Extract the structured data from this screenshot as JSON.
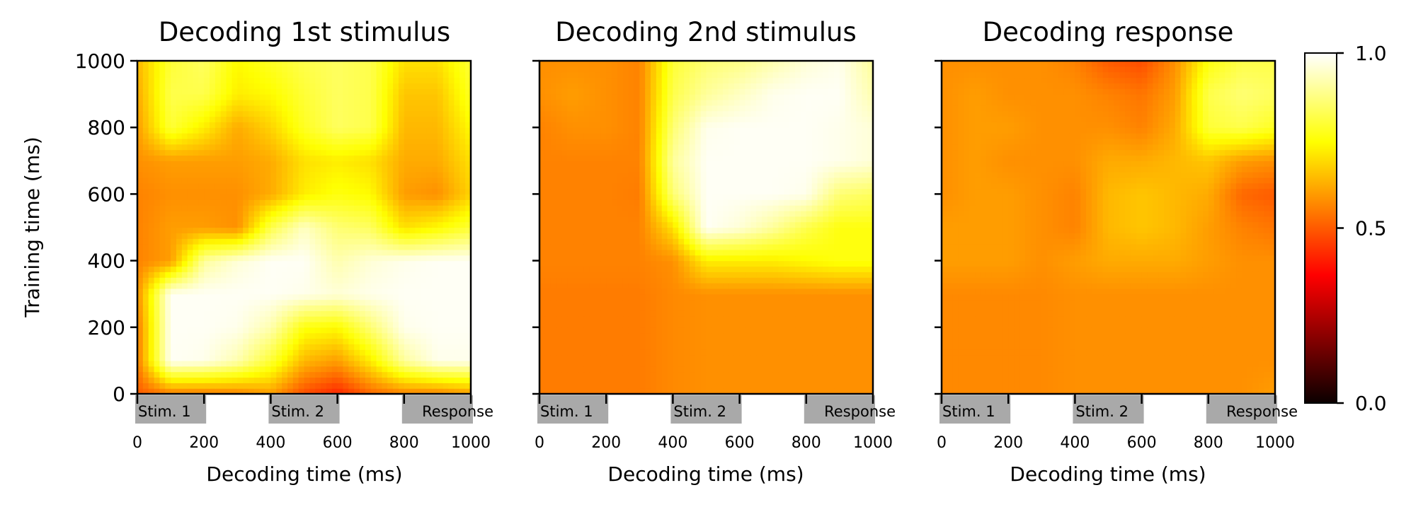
{
  "chart_data": [
    {
      "type": "heatmap",
      "title": "Decoding 1st stimulus",
      "xlabel": "Decoding time (ms)",
      "ylabel": "Training time (ms)",
      "xlim": [
        0,
        1000
      ],
      "ylim": [
        0,
        1000
      ],
      "x_ticks": [
        "0",
        "200",
        "400",
        "600",
        "800",
        "1000"
      ],
      "y_ticks": [
        "0",
        "200",
        "400",
        "600",
        "800",
        "1000"
      ],
      "epochs": [
        {
          "label": "Stim. 1",
          "start": 0,
          "end": 200
        },
        {
          "label": "Stim. 2",
          "start": 400,
          "end": 600
        },
        {
          "label": "Response",
          "start": 800,
          "end": 1000
        }
      ],
      "x": [
        0,
        100,
        200,
        300,
        400,
        500,
        600,
        700,
        800,
        900,
        1000
      ],
      "y": [
        0,
        100,
        200,
        300,
        400,
        500,
        600,
        700,
        800,
        900,
        1000
      ],
      "values": [
        [
          0.5,
          0.55,
          0.55,
          0.56,
          0.6,
          0.48,
          0.42,
          0.52,
          0.56,
          0.56,
          0.6
        ],
        [
          0.55,
          0.99,
          0.98,
          0.92,
          0.8,
          0.64,
          0.6,
          0.72,
          0.9,
          0.98,
          0.98
        ],
        [
          0.55,
          0.99,
          0.99,
          0.98,
          0.92,
          0.76,
          0.74,
          0.86,
          0.98,
          0.99,
          0.99
        ],
        [
          0.58,
          0.99,
          0.99,
          0.99,
          0.99,
          0.98,
          0.96,
          0.98,
          0.99,
          0.99,
          0.99
        ],
        [
          0.56,
          0.6,
          0.9,
          0.96,
          0.99,
          0.99,
          0.92,
          0.96,
          0.98,
          0.99,
          0.99
        ],
        [
          0.56,
          0.6,
          0.6,
          0.58,
          0.82,
          0.94,
          0.86,
          0.84,
          0.7,
          0.74,
          0.8
        ],
        [
          0.56,
          0.58,
          0.58,
          0.58,
          0.62,
          0.72,
          0.76,
          0.74,
          0.6,
          0.58,
          0.68
        ],
        [
          0.58,
          0.6,
          0.6,
          0.6,
          0.62,
          0.7,
          0.72,
          0.7,
          0.62,
          0.62,
          0.7
        ],
        [
          0.6,
          0.8,
          0.72,
          0.62,
          0.68,
          0.78,
          0.84,
          0.82,
          0.64,
          0.64,
          0.74
        ],
        [
          0.62,
          0.82,
          0.82,
          0.72,
          0.74,
          0.8,
          0.84,
          0.82,
          0.66,
          0.66,
          0.78
        ],
        [
          0.64,
          0.8,
          0.84,
          0.74,
          0.78,
          0.82,
          0.84,
          0.82,
          0.7,
          0.7,
          0.8
        ]
      ]
    },
    {
      "type": "heatmap",
      "title": "Decoding 2nd stimulus",
      "xlabel": "Decoding time (ms)",
      "xlim": [
        0,
        1000
      ],
      "ylim": [
        0,
        1000
      ],
      "x_ticks": [
        "0",
        "200",
        "400",
        "600",
        "800",
        "1000"
      ],
      "epochs": [
        {
          "label": "Stim. 1",
          "start": 0,
          "end": 200
        },
        {
          "label": "Stim. 2",
          "start": 400,
          "end": 600
        },
        {
          "label": "Response",
          "start": 800,
          "end": 1000
        }
      ],
      "x": [
        0,
        100,
        200,
        300,
        400,
        500,
        600,
        700,
        800,
        900,
        1000
      ],
      "y": [
        0,
        100,
        200,
        300,
        400,
        500,
        600,
        700,
        800,
        900,
        1000
      ],
      "values": [
        [
          0.55,
          0.55,
          0.55,
          0.55,
          0.57,
          0.58,
          0.58,
          0.58,
          0.58,
          0.58,
          0.58
        ],
        [
          0.55,
          0.55,
          0.55,
          0.55,
          0.57,
          0.58,
          0.58,
          0.58,
          0.58,
          0.58,
          0.58
        ],
        [
          0.55,
          0.55,
          0.55,
          0.55,
          0.57,
          0.58,
          0.58,
          0.58,
          0.58,
          0.58,
          0.58
        ],
        [
          0.55,
          0.55,
          0.55,
          0.55,
          0.57,
          0.58,
          0.58,
          0.58,
          0.58,
          0.58,
          0.58
        ],
        [
          0.56,
          0.56,
          0.56,
          0.56,
          0.58,
          0.72,
          0.72,
          0.72,
          0.74,
          0.76,
          0.76
        ],
        [
          0.56,
          0.56,
          0.56,
          0.56,
          0.7,
          0.99,
          0.96,
          0.9,
          0.82,
          0.76,
          0.76
        ],
        [
          0.56,
          0.56,
          0.56,
          0.55,
          0.86,
          0.99,
          0.99,
          0.99,
          0.98,
          0.86,
          0.84
        ],
        [
          0.56,
          0.56,
          0.56,
          0.56,
          0.9,
          0.99,
          0.99,
          0.99,
          0.99,
          0.98,
          0.96
        ],
        [
          0.56,
          0.58,
          0.58,
          0.56,
          0.86,
          0.98,
          0.99,
          0.99,
          0.99,
          0.98,
          0.96
        ],
        [
          0.58,
          0.6,
          0.58,
          0.56,
          0.82,
          0.9,
          0.94,
          0.98,
          0.99,
          0.99,
          0.92
        ],
        [
          0.58,
          0.58,
          0.58,
          0.56,
          0.8,
          0.86,
          0.88,
          0.92,
          0.96,
          0.98,
          0.9
        ]
      ]
    },
    {
      "type": "heatmap",
      "title": "Decoding response",
      "xlabel": "Decoding time (ms)",
      "xlim": [
        0,
        1000
      ],
      "ylim": [
        0,
        1000
      ],
      "x_ticks": [
        "0",
        "200",
        "400",
        "600",
        "800",
        "1000"
      ],
      "epochs": [
        {
          "label": "Stim. 1",
          "start": 0,
          "end": 200
        },
        {
          "label": "Stim. 2",
          "start": 400,
          "end": 600
        },
        {
          "label": "Response",
          "start": 800,
          "end": 1000
        }
      ],
      "x": [
        0,
        100,
        200,
        300,
        400,
        500,
        600,
        700,
        800,
        900,
        1000
      ],
      "y": [
        0,
        100,
        200,
        300,
        400,
        500,
        600,
        700,
        800,
        900,
        1000
      ],
      "values": [
        [
          0.57,
          0.57,
          0.57,
          0.57,
          0.58,
          0.58,
          0.58,
          0.58,
          0.58,
          0.58,
          0.6
        ],
        [
          0.57,
          0.57,
          0.57,
          0.57,
          0.58,
          0.58,
          0.58,
          0.58,
          0.58,
          0.58,
          0.58
        ],
        [
          0.57,
          0.57,
          0.57,
          0.57,
          0.58,
          0.58,
          0.58,
          0.58,
          0.58,
          0.58,
          0.58
        ],
        [
          0.57,
          0.57,
          0.57,
          0.57,
          0.58,
          0.58,
          0.58,
          0.58,
          0.58,
          0.58,
          0.58
        ],
        [
          0.6,
          0.6,
          0.6,
          0.58,
          0.6,
          0.62,
          0.62,
          0.62,
          0.6,
          0.58,
          0.58
        ],
        [
          0.6,
          0.6,
          0.6,
          0.58,
          0.56,
          0.64,
          0.66,
          0.64,
          0.6,
          0.56,
          0.54
        ],
        [
          0.58,
          0.6,
          0.6,
          0.58,
          0.56,
          0.64,
          0.66,
          0.64,
          0.62,
          0.52,
          0.5
        ],
        [
          0.58,
          0.6,
          0.58,
          0.58,
          0.58,
          0.62,
          0.62,
          0.64,
          0.66,
          0.6,
          0.58
        ],
        [
          0.58,
          0.6,
          0.6,
          0.58,
          0.58,
          0.58,
          0.56,
          0.62,
          0.8,
          0.82,
          0.78
        ],
        [
          0.58,
          0.6,
          0.58,
          0.58,
          0.58,
          0.56,
          0.54,
          0.6,
          0.82,
          0.86,
          0.84
        ],
        [
          0.58,
          0.58,
          0.58,
          0.58,
          0.56,
          0.5,
          0.48,
          0.58,
          0.76,
          0.82,
          0.82
        ]
      ]
    }
  ],
  "colorbar": {
    "colormap": "hot",
    "min": 0.0,
    "max": 1.0,
    "ticks": [
      "0.0",
      "0.5",
      "1.0"
    ]
  },
  "colors": {
    "epoch_band": "#a9a9a9",
    "axis": "#000000"
  }
}
